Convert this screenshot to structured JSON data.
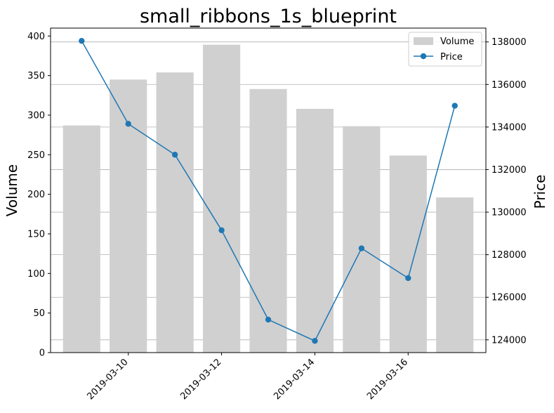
{
  "chart_data": {
    "type": "bar+line",
    "title": "small_ribbons_1s_blueprint",
    "dates": [
      "2019-03-09",
      "2019-03-10",
      "2019-03-11",
      "2019-03-12",
      "2019-03-13",
      "2019-03-14",
      "2019-03-15",
      "2019-03-16",
      "2019-03-17"
    ],
    "xlim": [
      "2019-03-08T08:00",
      "2019-03-17T16:00"
    ],
    "x_ticks": [
      "2019-03-10",
      "2019-03-12",
      "2019-03-14",
      "2019-03-16"
    ],
    "volume": {
      "name": "Volume",
      "axis": "left",
      "label": "Volume",
      "values": [
        287,
        345,
        354,
        389,
        333,
        308,
        286,
        249,
        196
      ],
      "ylim": [
        0,
        410
      ],
      "ticks": [
        0,
        50,
        100,
        150,
        200,
        250,
        300,
        350,
        400
      ],
      "color": "#d0d0d0"
    },
    "price": {
      "name": "Price",
      "axis": "right",
      "label": "Price",
      "values": [
        138050,
        134150,
        132700,
        129150,
        124950,
        123950,
        128300,
        126900,
        135000
      ],
      "ylim": [
        123400,
        138650
      ],
      "ticks": [
        124000,
        126000,
        128000,
        130000,
        132000,
        134000,
        136000,
        138000
      ],
      "color": "#1f77b4"
    },
    "grid": "horizontal-right-axis",
    "legend": "top-right"
  }
}
